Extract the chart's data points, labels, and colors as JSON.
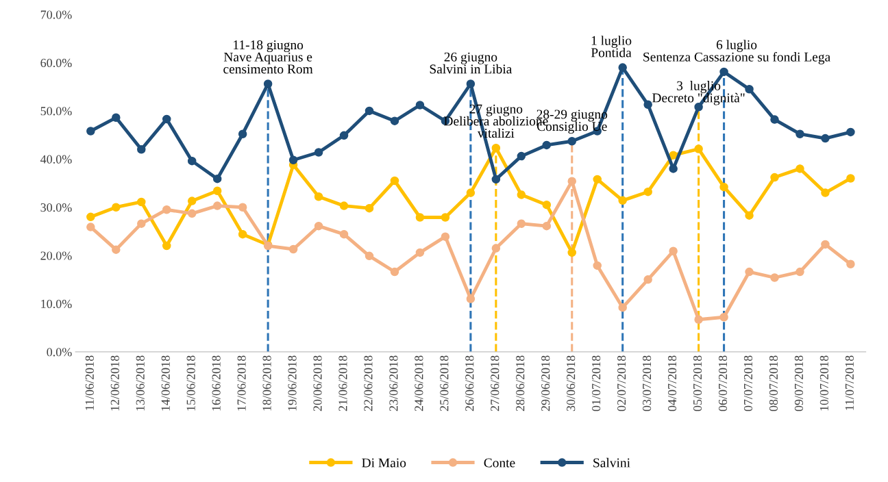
{
  "chart_data": {
    "type": "line",
    "categories": [
      "11/06/2018",
      "12/06/2018",
      "13/06/2018",
      "14/06/2018",
      "15/06/2018",
      "16/06/2018",
      "17/06/2018",
      "18/06/2018",
      "19/06/2018",
      "20/06/2018",
      "21/06/2018",
      "22/06/2018",
      "23/06/2018",
      "24/06/2018",
      "25/06/2018",
      "26/06/2018",
      "27/06/2018",
      "28/06/2018",
      "29/06/2018",
      "30/06/2018",
      "01/07/2018",
      "02/07/2018",
      "03/07/2018",
      "04/07/2018",
      "05/07/2018",
      "06/07/2018",
      "07/07/2018",
      "08/07/2018",
      "09/07/2018",
      "10/07/2018",
      "11/07/2018"
    ],
    "series": [
      {
        "name": "Di Maio",
        "color": "#ffc000",
        "values": [
          28,
          30,
          31.1,
          22,
          31.3,
          33.4,
          24.4,
          22.2,
          38.8,
          32.2,
          30.3,
          29.8,
          35.5,
          27.9,
          27.9,
          33,
          42.3,
          32.6,
          30.5,
          20.6,
          35.8,
          31.4,
          33.2,
          40.8,
          42.1,
          34.2,
          28.3,
          36.2,
          38,
          33,
          36
        ]
      },
      {
        "name": "Conte",
        "color": "#f4b183",
        "values": [
          25.9,
          21.2,
          26.6,
          29.5,
          28.7,
          30.3,
          30,
          22,
          21.3,
          26.1,
          24.4,
          19.9,
          16.6,
          20.6,
          23.9,
          11,
          21.5,
          26.6,
          26.1,
          35.4,
          17.9,
          9.2,
          15,
          20.9,
          6.7,
          7.2,
          16.6,
          15.4,
          16.6,
          22.3,
          18.2
        ]
      },
      {
        "name": "Salvini",
        "color": "#1f4e79",
        "values": [
          45.8,
          48.6,
          42,
          48.3,
          39.6,
          35.9,
          45.2,
          55.6,
          39.8,
          41.4,
          44.9,
          50,
          47.9,
          51.2,
          47.9,
          55.6,
          35.8,
          40.6,
          42.9,
          43.7,
          45.8,
          59,
          51.3,
          38,
          50.8,
          58.1,
          54.5,
          48.2,
          45.2,
          44.3,
          45.6
        ]
      }
    ],
    "ylim": [
      0,
      70
    ],
    "yticks": [
      {
        "value": 0,
        "label": "0.0%"
      },
      {
        "value": 10,
        "label": "10.0%"
      },
      {
        "value": 20,
        "label": "20.0%"
      },
      {
        "value": 30,
        "label": "30.0%"
      },
      {
        "value": 40,
        "label": "40.0%"
      },
      {
        "value": 50,
        "label": "50.0%"
      },
      {
        "value": 60,
        "label": "60.0%"
      },
      {
        "value": 70,
        "label": "70.0%"
      }
    ],
    "ref_lines": [
      {
        "axis": "x",
        "value": "18/06/2018",
        "color": "#2e75b6",
        "line_style": "dashed",
        "label": "11-18 giugno\nNave Aquarius e\ncensimento Rom"
      },
      {
        "axis": "x",
        "value": "26/06/2018",
        "color": "#2e75b6",
        "line_style": "dashed",
        "label": "26 giugno\nSalvini in Libia"
      },
      {
        "axis": "x",
        "value": "27/06/2018",
        "color": "#ffc000",
        "line_style": "dashed",
        "label": "27 giugno\nDelibera abolizione\nvitalizi"
      },
      {
        "axis": "x",
        "value": "30/06/2018",
        "color": "#f4b183",
        "line_style": "dashed",
        "label": "28-29 giugno\nConsiglio Ue"
      },
      {
        "axis": "x",
        "value": "02/07/2018",
        "color": "#2e75b6",
        "line_style": "dashed",
        "label": "1 luglio\nPontida"
      },
      {
        "axis": "x",
        "value": "05/07/2018",
        "color": "#ffc000",
        "line_style": "dashed",
        "label": "3  luglio\nDecreto \"dignità\""
      },
      {
        "axis": "x",
        "value": "06/07/2018",
        "color": "#2e75b6",
        "line_style": "dashed",
        "label": "6 luglio\nSentenza Cassazione su fondi Lega"
      }
    ],
    "marker": "circle",
    "line_style": "solid",
    "grid": false,
    "legend": "bottom"
  }
}
